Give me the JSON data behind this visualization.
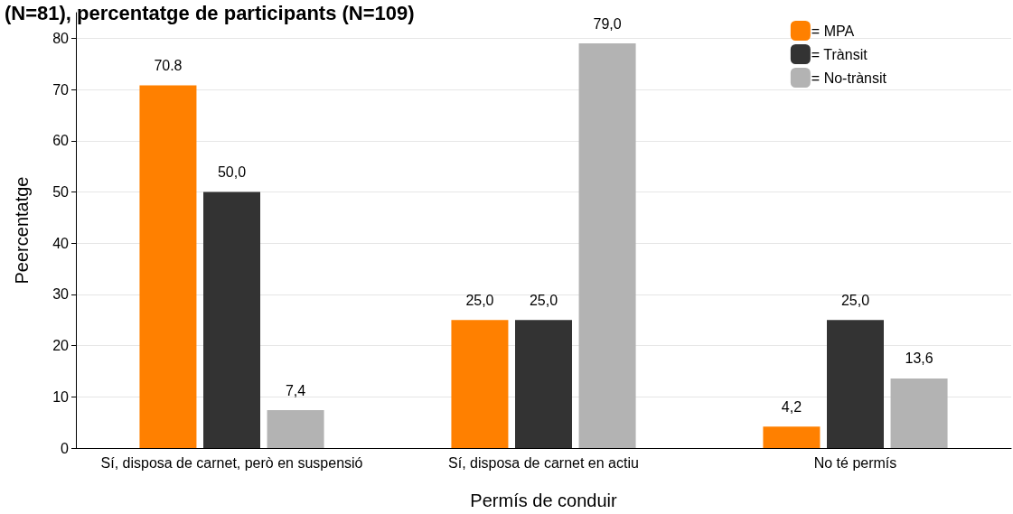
{
  "chart_data": {
    "type": "bar",
    "title": "(N=81), percentatge de participants (N=109)",
    "xlabel": "Permís de conduir",
    "ylabel": "Peercentatge",
    "categories": [
      "Sí, disposa de carnet, però en suspensió",
      "Sí, disposa de carnet en actiu",
      "No té permís"
    ],
    "series": [
      {
        "name": "= MPA",
        "color": "#ff8000",
        "values": [
          70.8,
          25.0,
          4.2
        ],
        "value_labels": [
          "70.8",
          "25,0",
          "4,2"
        ]
      },
      {
        "name": "= Trànsit",
        "color": "#333333",
        "values": [
          50.0,
          25.0,
          25.0
        ],
        "value_labels": [
          "50,0",
          "25,0",
          "25,0"
        ]
      },
      {
        "name": "= No-trànsit",
        "color": "#b3b3b3",
        "values": [
          7.4,
          79.0,
          13.6
        ],
        "value_labels": [
          "7,4",
          "79,0",
          "13,6"
        ]
      }
    ],
    "ylim": [
      0,
      85
    ],
    "yticks": [
      0,
      10,
      20,
      30,
      40,
      50,
      60,
      70,
      80
    ],
    "grid": "y",
    "legend": "top right"
  }
}
